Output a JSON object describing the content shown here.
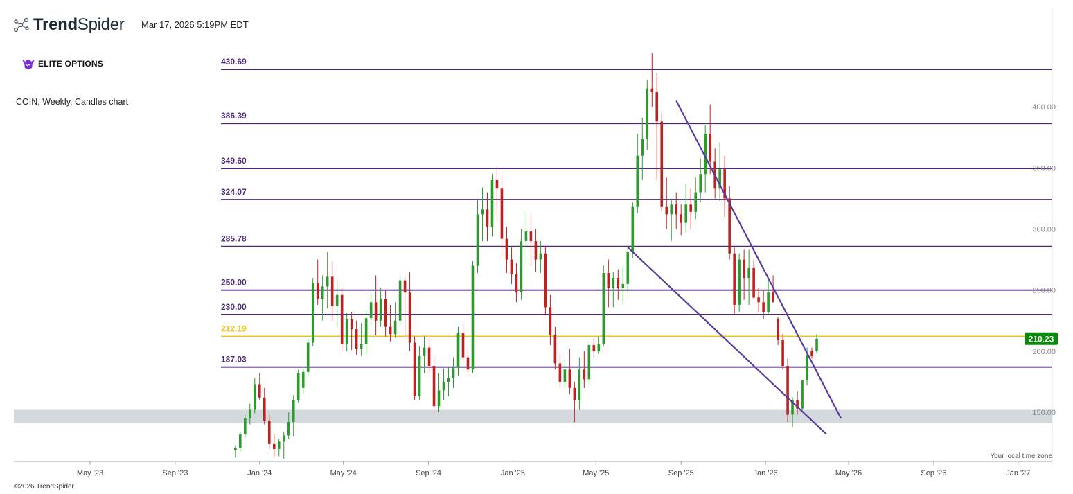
{
  "header": {
    "brand_bold": "Trend",
    "brand_light": "Spider",
    "brand_icon": "network-nodes-icon",
    "timestamp": "Mar 17, 2026 5:19PM EDT",
    "partner_logo_text": "ELITE OPTIONS",
    "chart_description": "COIN, Weekly, Candles chart"
  },
  "footer": {
    "copyright": "©2026 TrendSpider",
    "timezone_note": "Your local time zone"
  },
  "colors": {
    "up": "#2e9a2e",
    "down": "#c0201f",
    "level": "#4b2a7a",
    "highlight_level": "#f0c419",
    "trendline": "#5a3aa0",
    "zone": "#d3d9dc",
    "price_tag": "#0d8a0d"
  },
  "chart_data": {
    "type": "candlestick",
    "symbol": "COIN",
    "interval": "Weekly",
    "y_axis": {
      "ticks": [
        150,
        200,
        250,
        300,
        350,
        400
      ],
      "tick_labels": [
        "150.00",
        "200.00",
        "250.00",
        "300.00",
        "350.00",
        "400.00"
      ],
      "range": [
        110,
        440
      ],
      "position": "right"
    },
    "x_axis": {
      "ticks": [
        "2023-05-01",
        "2023-09-01",
        "2024-01-01",
        "2024-05-01",
        "2024-09-01",
        "2025-01-01",
        "2025-05-01",
        "2025-09-01",
        "2026-01-01",
        "2026-05-01",
        "2026-09-01",
        "2027-01-01"
      ],
      "tick_labels": [
        "May '23",
        "Sep '23",
        "Jan '24",
        "May '24",
        "Sep '24",
        "Jan '25",
        "May '25",
        "Sep '25",
        "Jan '26",
        "May '26",
        "Sep '26",
        "Jan '27"
      ]
    },
    "levels": [
      {
        "value": 430.69,
        "label": "430.69"
      },
      {
        "value": 386.39,
        "label": "386.39"
      },
      {
        "value": 349.6,
        "label": "349.60"
      },
      {
        "value": 324.07,
        "label": "324.07"
      },
      {
        "value": 285.78,
        "label": "285.78"
      },
      {
        "value": 250.0,
        "label": "250.00"
      },
      {
        "value": 230.0,
        "label": "230.00"
      },
      {
        "value": 212.19,
        "label": "212.19",
        "highlight": true
      },
      {
        "value": 187.03,
        "label": "187.03"
      }
    ],
    "zone": {
      "from": 141,
      "to": 152
    },
    "trendlines": [
      {
        "from": {
          "date": "2025-08-25",
          "price": 405
        },
        "to": {
          "date": "2026-04-20",
          "price": 145
        }
      },
      {
        "from": {
          "date": "2025-06-16",
          "price": 285
        },
        "to": {
          "date": "2026-03-30",
          "price": 132
        }
      }
    ],
    "last_price": {
      "value": 210.23,
      "label": "210.23"
    },
    "candles": [
      [
        "2023-11-27",
        119,
        123,
        113,
        121
      ],
      [
        "2023-12-04",
        121,
        134,
        118,
        132
      ],
      [
        "2023-12-11",
        132,
        148,
        129,
        145
      ],
      [
        "2023-12-18",
        145,
        157,
        140,
        152
      ],
      [
        "2023-12-25",
        152,
        178,
        149,
        173
      ],
      [
        "2024-01-01",
        173,
        182,
        160,
        162
      ],
      [
        "2024-01-08",
        162,
        170,
        140,
        143
      ],
      [
        "2024-01-15",
        143,
        148,
        120,
        124
      ],
      [
        "2024-01-22",
        124,
        132,
        114,
        120
      ],
      [
        "2024-01-29",
        120,
        128,
        114,
        126
      ],
      [
        "2024-02-05",
        126,
        134,
        112,
        131
      ],
      [
        "2024-02-12",
        131,
        150,
        128,
        142
      ],
      [
        "2024-02-19",
        142,
        164,
        130,
        160
      ],
      [
        "2024-02-26",
        160,
        185,
        158,
        182
      ],
      [
        "2024-03-04",
        170,
        186,
        165,
        183
      ],
      [
        "2024-03-11",
        183,
        210,
        180,
        207
      ],
      [
        "2024-03-18",
        207,
        260,
        204,
        256
      ],
      [
        "2024-03-25",
        256,
        275,
        238,
        243
      ],
      [
        "2024-04-01",
        243,
        262,
        225,
        253
      ],
      [
        "2024-04-08",
        253,
        281,
        235,
        261
      ],
      [
        "2024-04-15",
        261,
        274,
        225,
        237
      ],
      [
        "2024-04-22",
        237,
        258,
        220,
        246
      ],
      [
        "2024-04-29",
        246,
        252,
        200,
        206
      ],
      [
        "2024-05-06",
        206,
        231,
        200,
        226
      ],
      [
        "2024-05-13",
        226,
        232,
        201,
        218
      ],
      [
        "2024-05-20",
        218,
        225,
        197,
        202
      ],
      [
        "2024-05-27",
        202,
        223,
        196,
        206
      ],
      [
        "2024-06-03",
        206,
        234,
        197,
        227
      ],
      [
        "2024-06-10",
        227,
        248,
        221,
        240
      ],
      [
        "2024-06-17",
        240,
        262,
        213,
        225
      ],
      [
        "2024-06-24",
        225,
        252,
        220,
        243
      ],
      [
        "2024-07-01",
        243,
        250,
        212,
        220
      ],
      [
        "2024-07-08",
        220,
        238,
        208,
        214
      ],
      [
        "2024-07-15",
        214,
        240,
        211,
        225
      ],
      [
        "2024-07-22",
        225,
        261,
        220,
        258
      ],
      [
        "2024-07-29",
        258,
        262,
        210,
        248
      ],
      [
        "2024-08-05",
        248,
        265,
        200,
        207
      ],
      [
        "2024-08-12",
        207,
        212,
        160,
        163
      ],
      [
        "2024-08-19",
        163,
        204,
        160,
        196
      ],
      [
        "2024-08-26",
        196,
        212,
        182,
        203
      ],
      [
        "2024-09-02",
        203,
        212,
        182,
        188
      ],
      [
        "2024-09-09",
        188,
        195,
        150,
        155
      ],
      [
        "2024-09-16",
        155,
        182,
        150,
        168
      ],
      [
        "2024-09-23",
        168,
        186,
        160,
        175
      ],
      [
        "2024-09-30",
        175,
        187,
        163,
        178
      ],
      [
        "2024-10-07",
        178,
        195,
        170,
        187
      ],
      [
        "2024-10-14",
        187,
        220,
        180,
        215
      ],
      [
        "2024-10-21",
        215,
        222,
        190,
        195
      ],
      [
        "2024-10-28",
        195,
        202,
        180,
        185
      ],
      [
        "2024-11-04",
        185,
        274,
        182,
        270
      ],
      [
        "2024-11-11",
        270,
        325,
        264,
        312
      ],
      [
        "2024-11-18",
        312,
        334,
        290,
        316
      ],
      [
        "2024-11-25",
        316,
        330,
        290,
        302
      ],
      [
        "2024-12-02",
        302,
        345,
        294,
        340
      ],
      [
        "2024-12-09",
        340,
        350,
        310,
        333
      ],
      [
        "2024-12-16",
        333,
        345,
        278,
        292
      ],
      [
        "2024-12-23",
        292,
        302,
        264,
        275
      ],
      [
        "2024-12-30",
        275,
        285,
        255,
        263
      ],
      [
        "2025-01-06",
        263,
        272,
        240,
        248
      ],
      [
        "2025-01-13",
        248,
        300,
        242,
        290
      ],
      [
        "2025-01-20",
        290,
        315,
        270,
        298
      ],
      [
        "2025-01-27",
        298,
        312,
        270,
        290
      ],
      [
        "2025-02-03",
        290,
        300,
        265,
        275
      ],
      [
        "2025-02-10",
        275,
        290,
        264,
        280
      ],
      [
        "2025-02-17",
        280,
        285,
        230,
        236
      ],
      [
        "2025-02-24",
        236,
        246,
        205,
        213
      ],
      [
        "2025-03-03",
        213,
        220,
        185,
        190
      ],
      [
        "2025-03-10",
        190,
        198,
        170,
        175
      ],
      [
        "2025-03-17",
        175,
        193,
        170,
        185
      ],
      [
        "2025-03-24",
        185,
        202,
        165,
        170
      ],
      [
        "2025-03-31",
        170,
        175,
        142,
        160
      ],
      [
        "2025-04-07",
        160,
        195,
        152,
        185
      ],
      [
        "2025-04-14",
        185,
        200,
        170,
        177
      ],
      [
        "2025-04-21",
        177,
        208,
        172,
        205
      ],
      [
        "2025-04-28",
        205,
        210,
        195,
        200
      ],
      [
        "2025-05-05",
        200,
        212,
        198,
        206
      ],
      [
        "2025-05-12",
        206,
        270,
        204,
        264
      ],
      [
        "2025-05-19",
        264,
        275,
        236,
        252
      ],
      [
        "2025-05-26",
        252,
        265,
        236,
        260
      ],
      [
        "2025-06-02",
        260,
        267,
        242,
        252
      ],
      [
        "2025-06-09",
        252,
        268,
        238,
        255
      ],
      [
        "2025-06-16",
        255,
        285,
        248,
        281
      ],
      [
        "2025-06-23",
        281,
        322,
        276,
        318
      ],
      [
        "2025-06-30",
        318,
        378,
        313,
        360
      ],
      [
        "2025-07-07",
        360,
        391,
        340,
        374
      ],
      [
        "2025-07-14",
        374,
        422,
        365,
        415
      ],
      [
        "2025-07-21",
        415,
        444,
        400,
        412
      ],
      [
        "2025-07-28",
        412,
        428,
        340,
        388
      ],
      [
        "2025-08-04",
        388,
        395,
        315,
        318
      ],
      [
        "2025-08-11",
        318,
        342,
        300,
        312
      ],
      [
        "2025-08-18",
        312,
        325,
        290,
        320
      ],
      [
        "2025-08-25",
        320,
        330,
        300,
        312
      ],
      [
        "2025-09-01",
        312,
        320,
        295,
        305
      ],
      [
        "2025-09-08",
        305,
        337,
        297,
        320
      ],
      [
        "2025-09-15",
        320,
        333,
        300,
        314
      ],
      [
        "2025-09-22",
        314,
        342,
        308,
        330
      ],
      [
        "2025-09-29",
        330,
        358,
        322,
        345
      ],
      [
        "2025-10-06",
        345,
        385,
        330,
        378
      ],
      [
        "2025-10-13",
        378,
        402,
        345,
        355
      ],
      [
        "2025-10-20",
        355,
        366,
        325,
        333
      ],
      [
        "2025-10-27",
        333,
        371,
        323,
        349
      ],
      [
        "2025-11-03",
        349,
        360,
        310,
        325
      ],
      [
        "2025-11-10",
        325,
        335,
        275,
        280
      ],
      [
        "2025-11-17",
        280,
        285,
        230,
        238
      ],
      [
        "2025-11-24",
        238,
        280,
        232,
        275
      ],
      [
        "2025-12-01",
        275,
        283,
        242,
        260
      ],
      [
        "2025-12-08",
        260,
        283,
        238,
        268
      ],
      [
        "2025-12-15",
        268,
        275,
        243,
        244
      ],
      [
        "2025-12-22",
        244,
        252,
        232,
        240
      ],
      [
        "2025-12-29",
        240,
        250,
        226,
        232
      ],
      [
        "2026-01-05",
        232,
        258,
        230,
        248
      ],
      [
        "2026-01-12",
        248,
        262,
        240,
        240
      ],
      [
        "2026-01-19",
        226,
        228,
        205,
        209
      ],
      [
        "2026-01-26",
        209,
        214,
        185,
        188
      ],
      [
        "2026-02-02",
        188,
        194,
        142,
        148
      ],
      [
        "2026-02-09",
        148,
        162,
        138,
        160
      ],
      [
        "2026-02-16",
        160,
        167,
        148,
        153
      ],
      [
        "2026-02-23",
        153,
        176,
        150,
        176
      ],
      [
        "2026-03-02",
        176,
        203,
        172,
        197
      ],
      [
        "2026-03-09",
        200,
        203,
        194,
        196
      ],
      [
        "2026-03-16",
        200,
        214,
        198,
        210
      ]
    ]
  }
}
